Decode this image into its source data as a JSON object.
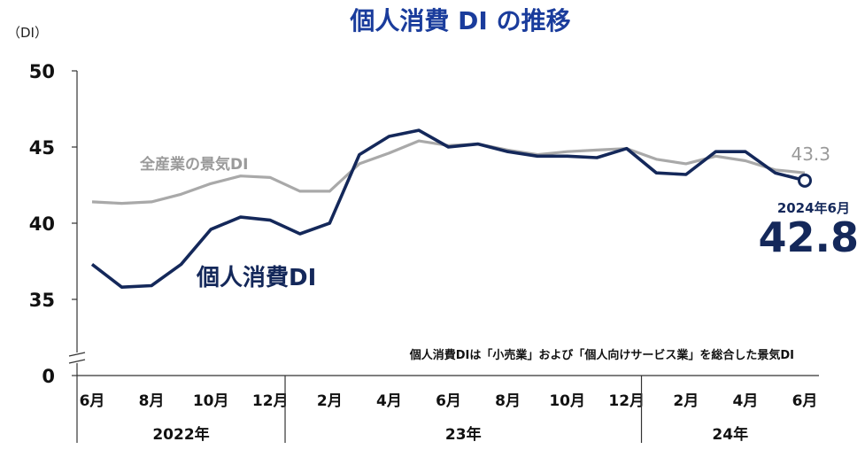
{
  "chart_data": {
    "type": "line",
    "title": "個人消費 DI の推移",
    "unit_label": "（DI）",
    "y_ticks": [
      "50",
      "45",
      "40",
      "35",
      "0"
    ],
    "ylim": [
      35,
      50
    ],
    "y_break": true,
    "x": [
      "2022-06",
      "2022-07",
      "2022-08",
      "2022-09",
      "2022-10",
      "2022-11",
      "2022-12",
      "2023-01",
      "2023-02",
      "2023-03",
      "2023-04",
      "2023-05",
      "2023-06",
      "2023-07",
      "2023-08",
      "2023-09",
      "2023-10",
      "2023-11",
      "2023-12",
      "2024-01",
      "2024-02",
      "2024-03",
      "2024-04",
      "2024-05",
      "2024-06"
    ],
    "x_tick_labels": [
      "6月",
      "8月",
      "10月",
      "12月",
      "2月",
      "4月",
      "6月",
      "8月",
      "10月",
      "12月",
      "2月",
      "4月",
      "6月"
    ],
    "year_labels": [
      "2022年",
      "23年",
      "24年"
    ],
    "series": [
      {
        "name": "全産業の景気DI",
        "color": "#a9a9a9",
        "values": [
          41.4,
          41.3,
          41.4,
          41.9,
          42.6,
          43.1,
          43.0,
          42.1,
          42.1,
          43.9,
          44.6,
          45.4,
          45.1,
          45.2,
          44.8,
          44.5,
          44.7,
          44.8,
          44.9,
          44.2,
          43.9,
          44.4,
          44.1,
          43.5,
          43.3
        ],
        "end_value_label": "43.3"
      },
      {
        "name": "個人消費DI",
        "color": "#14285a",
        "values": [
          37.3,
          35.8,
          35.9,
          37.3,
          39.6,
          40.4,
          40.2,
          39.3,
          40.0,
          44.5,
          45.7,
          46.1,
          45.0,
          45.2,
          44.7,
          44.4,
          44.4,
          44.3,
          44.9,
          43.3,
          43.2,
          44.7,
          44.7,
          43.3,
          42.8
        ],
        "end_date_label": "2024年6月",
        "end_value_label": "42.8"
      }
    ],
    "annotation": "個人消費DIは「小売業」および「個人向けサービス業」を総合した景気DI"
  }
}
